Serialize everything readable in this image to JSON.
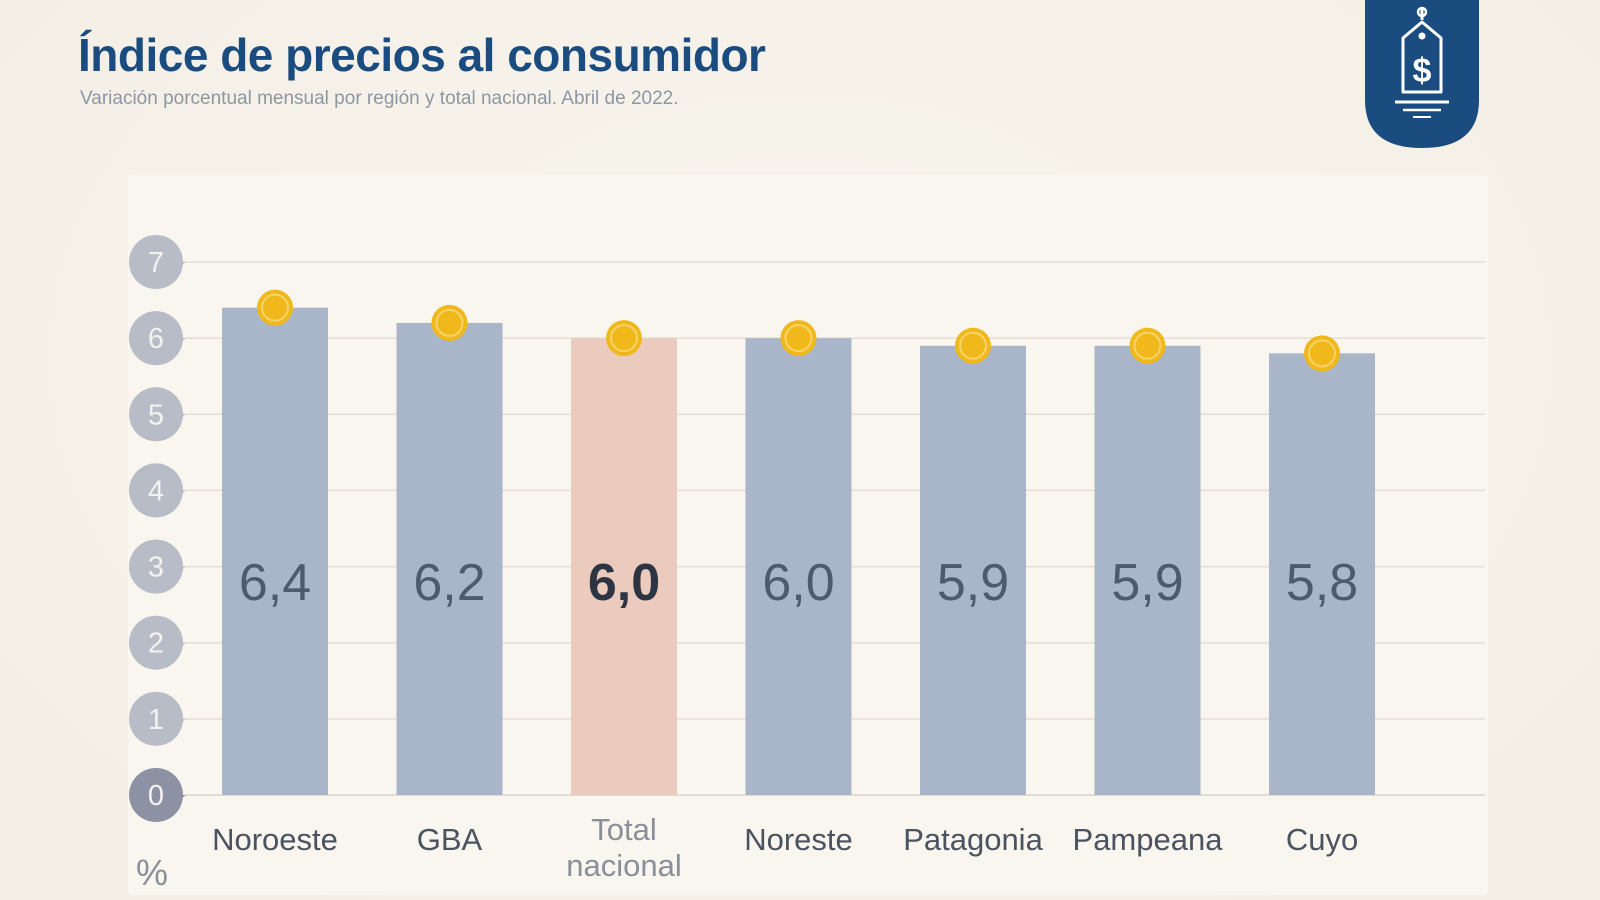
{
  "header": {
    "title": "Índice de precios al consumidor",
    "subtitle": "Variación porcentual mensual por región y total nacional. Abril de 2022."
  },
  "badge": {
    "icon": "price-tag-dollar-icon"
  },
  "colors": {
    "title": "#1b4c80",
    "bar": "#a9b5c9",
    "highlight_bar": "#ebcbbd",
    "marker": "#f0b81b",
    "bar_label": "#4e5a6e",
    "axis_bubble": "#b8bcc6",
    "badge": "#1b4c80"
  },
  "chart_data": {
    "type": "bar",
    "title": "Índice de precios al consumidor",
    "subtitle": "Variación porcentual mensual por región y total nacional. Abril de 2022.",
    "categories": [
      "Noroeste",
      "GBA",
      "Total nacional",
      "Noreste",
      "Patagonia",
      "Pampeana",
      "Cuyo"
    ],
    "category_lines": [
      [
        "Noroeste"
      ],
      [
        "GBA"
      ],
      [
        "Total",
        "nacional"
      ],
      [
        "Noreste"
      ],
      [
        "Patagonia"
      ],
      [
        "Pampeana"
      ],
      [
        "Cuyo"
      ]
    ],
    "values": [
      6.4,
      6.2,
      6.0,
      6.0,
      5.9,
      5.9,
      5.8
    ],
    "value_labels": [
      "6,4",
      "6,2",
      "6,0",
      "6,0",
      "5,9",
      "5,9",
      "5,8"
    ],
    "highlight": "Total nacional",
    "ylim": [
      0,
      7
    ],
    "yticks": [
      0,
      1,
      2,
      3,
      4,
      5,
      6,
      7
    ],
    "ylabel": "%",
    "xlabel": "",
    "grid": true
  }
}
